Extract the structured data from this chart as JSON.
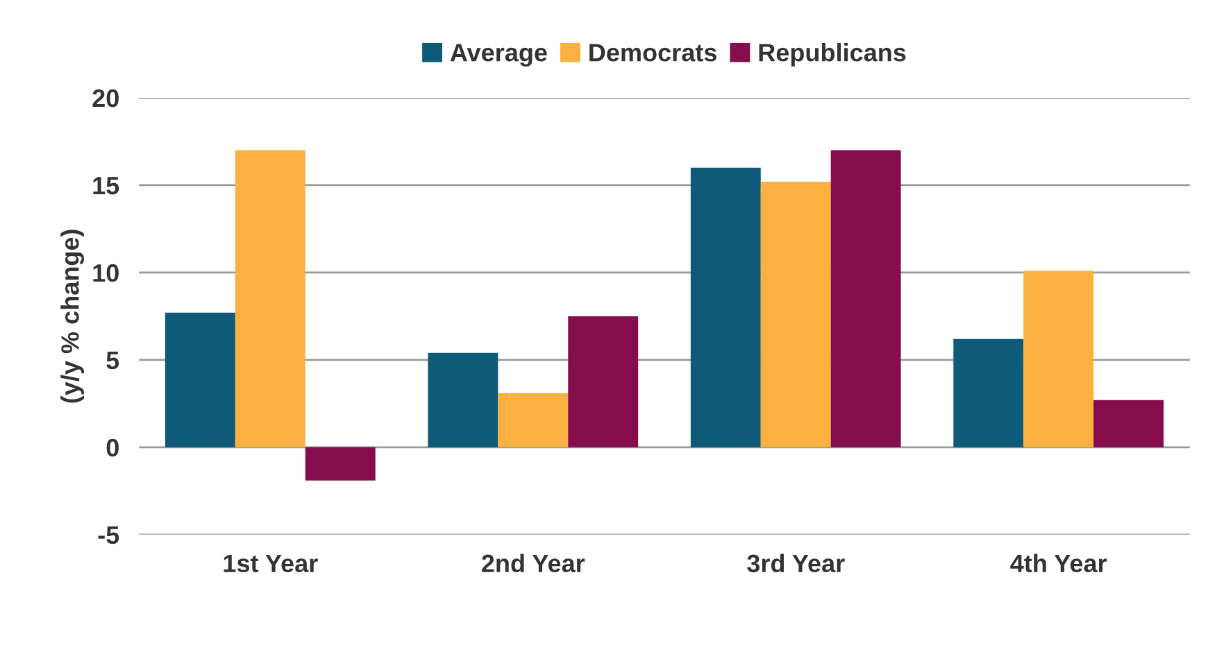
{
  "chart_data": {
    "type": "bar",
    "ylabel": "(y/y % change)",
    "categories": [
      "1st Year",
      "2nd Year",
      "3rd Year",
      "4th Year"
    ],
    "series": [
      {
        "name": "Average",
        "color": "#0e5a78",
        "values": [
          7.7,
          5.4,
          16.0,
          6.2
        ]
      },
      {
        "name": "Democrats",
        "color": "#fbb040",
        "values": [
          17.0,
          3.1,
          15.2,
          10.1
        ]
      },
      {
        "name": "Republicans",
        "color": "#850d4b",
        "values": [
          -1.9,
          7.5,
          17.0,
          2.7
        ]
      }
    ],
    "ylim": [
      -5,
      20
    ],
    "yticks": [
      -5,
      0,
      5,
      10,
      15,
      20
    ],
    "grid": "y",
    "legend": "top"
  }
}
